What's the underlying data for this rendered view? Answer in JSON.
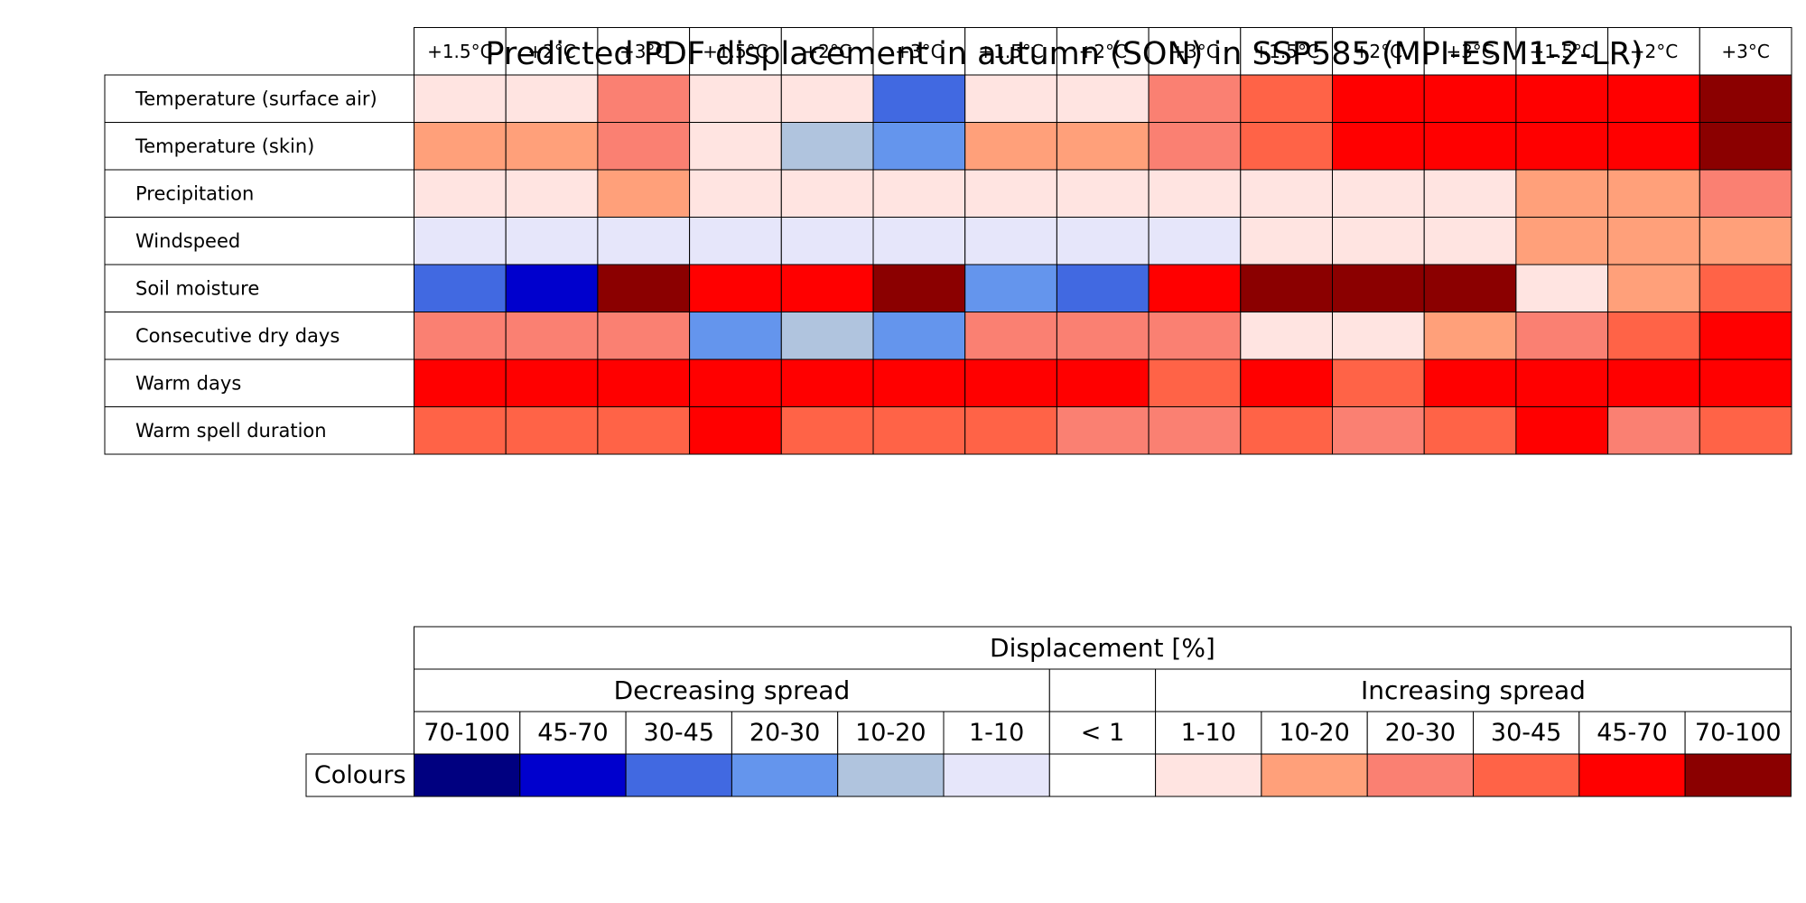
{
  "chart_data": {
    "type": "heatmap",
    "title": "Predicted PDF displacement in autumn (SON) in SSP585 (MPI-ESM1-2-LR)",
    "columns": [
      "+1.5°C",
      "+2°C",
      "+3°C",
      "+1.5°C",
      "+2°C",
      "+3°C",
      "+1.5°C",
      "+2°C",
      "+3°C",
      "+1.5°C",
      "+2°C",
      "+3°C",
      "+1.5°C",
      "+2°C",
      "+3°C"
    ],
    "rows": [
      {
        "label": "Temperature (surface air)",
        "classes": [
          "1-10 up",
          "1-10 up",
          "20-30 up",
          "1-10 up",
          "1-10 up",
          "30-45 down",
          "1-10 up",
          "1-10 up",
          "20-30 up",
          "30-45 up",
          "45-70 up",
          "45-70 up",
          "45-70 up",
          "45-70 up",
          "70-100 up"
        ]
      },
      {
        "label": "Temperature (skin)",
        "classes": [
          "10-20 up",
          "10-20 up",
          "20-30 up",
          "1-10 up",
          "10-20 down",
          "20-30 down",
          "10-20 up",
          "10-20 up",
          "20-30 up",
          "30-45 up",
          "45-70 up",
          "45-70 up",
          "45-70 up",
          "45-70 up",
          "70-100 up"
        ]
      },
      {
        "label": "Precipitation",
        "classes": [
          "1-10 up",
          "1-10 up",
          "10-20 up",
          "1-10 up",
          "1-10 up",
          "1-10 up",
          "1-10 up",
          "1-10 up",
          "1-10 up",
          "1-10 up",
          "1-10 up",
          "1-10 up",
          "10-20 up",
          "10-20 up",
          "20-30 up"
        ]
      },
      {
        "label": "Windspeed",
        "classes": [
          "1-10 down",
          "1-10 down",
          "1-10 down",
          "1-10 down",
          "1-10 down",
          "1-10 down",
          "1-10 down",
          "1-10 down",
          "1-10 down",
          "1-10 up",
          "1-10 up",
          "1-10 up",
          "10-20 up",
          "10-20 up",
          "10-20 up"
        ]
      },
      {
        "label": "Soil moisture",
        "classes": [
          "30-45 down",
          "45-70 down",
          "70-100 up",
          "45-70 up",
          "45-70 up",
          "70-100 up",
          "20-30 down",
          "30-45 down",
          "45-70 up",
          "70-100 up",
          "70-100 up",
          "70-100 up",
          "1-10 up",
          "10-20 up",
          "30-45 up"
        ]
      },
      {
        "label": "Consecutive dry days",
        "classes": [
          "20-30 up",
          "20-30 up",
          "20-30 up",
          "20-30 down",
          "10-20 down",
          "20-30 down",
          "20-30 up",
          "20-30 up",
          "20-30 up",
          "1-10 up",
          "1-10 up",
          "10-20 up",
          "20-30 up",
          "30-45 up",
          "45-70 up"
        ]
      },
      {
        "label": "Warm days",
        "classes": [
          "45-70 up",
          "45-70 up",
          "45-70 up",
          "45-70 up",
          "45-70 up",
          "45-70 up",
          "45-70 up",
          "45-70 up",
          "30-45 up",
          "45-70 up",
          "30-45 up",
          "45-70 up",
          "45-70 up",
          "45-70 up",
          "45-70 up"
        ]
      },
      {
        "label": "Warm spell duration",
        "classes": [
          "30-45 up",
          "30-45 up",
          "30-45 up",
          "45-70 up",
          "30-45 up",
          "30-45 up",
          "30-45 up",
          "20-30 up",
          "20-30 up",
          "30-45 up",
          "20-30 up",
          "30-45 up",
          "45-70 up",
          "20-30 up",
          "30-45 up"
        ]
      }
    ],
    "legend": {
      "title": "Displacement [%]",
      "decreasing_label": "Decreasing spread",
      "increasing_label": "Increasing spread",
      "row_label": "Colours",
      "bins": [
        {
          "id": "70-100 down",
          "label": "70-100",
          "color": "#000080"
        },
        {
          "id": "45-70 down",
          "label": "45-70",
          "color": "#0000cd"
        },
        {
          "id": "30-45 down",
          "label": "30-45",
          "color": "#4169e1"
        },
        {
          "id": "20-30 down",
          "label": "20-30",
          "color": "#6495ed"
        },
        {
          "id": "10-20 down",
          "label": "10-20",
          "color": "#b0c4de"
        },
        {
          "id": "1-10 down",
          "label": "1-10",
          "color": "#e6e6fa"
        },
        {
          "id": "< 1",
          "label": "< 1",
          "color": "#ffffff"
        },
        {
          "id": "1-10 up",
          "label": "1-10",
          "color": "#ffe4e1"
        },
        {
          "id": "10-20 up",
          "label": "10-20",
          "color": "#ffa07a"
        },
        {
          "id": "20-30 up",
          "label": "20-30",
          "color": "#fa8072"
        },
        {
          "id": "30-45 up",
          "label": "30-45",
          "color": "#ff6347"
        },
        {
          "id": "45-70 up",
          "label": "45-70",
          "color": "#ff0000"
        },
        {
          "id": "70-100 up",
          "label": "70-100",
          "color": "#8b0000"
        }
      ]
    }
  }
}
